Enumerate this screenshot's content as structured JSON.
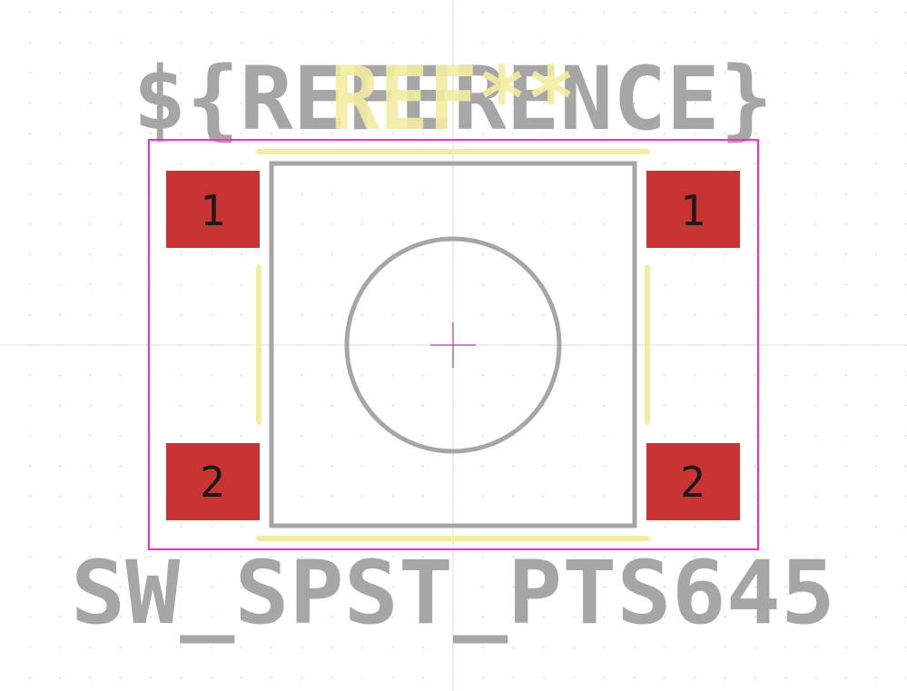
{
  "texts": {
    "reference_field": "${REFERENCE}",
    "reference_designator": "REF**",
    "value_field": "SW_SPST_PTS645"
  },
  "pads": [
    {
      "id": "pad-top-left",
      "number": "1"
    },
    {
      "id": "pad-top-right",
      "number": "1"
    },
    {
      "id": "pad-bottom-left",
      "number": "2"
    },
    {
      "id": "pad-bottom-right",
      "number": "2"
    }
  ],
  "colors": {
    "background": "#ffffff",
    "grid_dots": "#c8c8c8",
    "axis_lines": "#dcdcdc",
    "fab_gray": "#a6a6a6",
    "silkscreen_yellow": "#f2eda1",
    "courtyard_magenta": "#ff26e2",
    "pad_red": "#c83434",
    "pad_text": "#1a1a1a",
    "origin_marker": "#a040a0"
  }
}
